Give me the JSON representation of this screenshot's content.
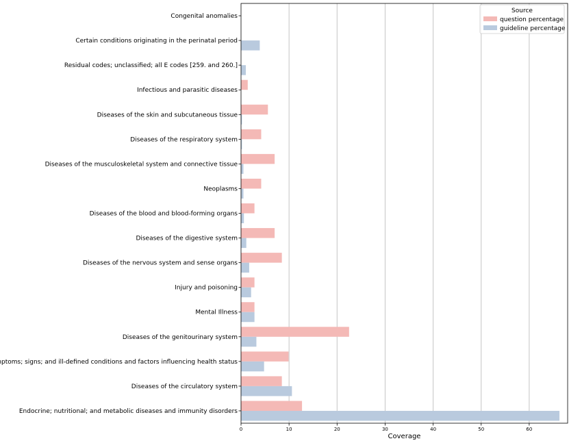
{
  "chart_data": {
    "type": "bar",
    "orientation": "horizontal",
    "title": "",
    "xlabel": "Coverage",
    "ylabel": "",
    "xlim": [
      0,
      68
    ],
    "xticks": [
      0,
      10,
      20,
      30,
      40,
      50,
      60
    ],
    "grid": "x",
    "legend": {
      "title": "Source",
      "position": "top-right"
    },
    "categories": [
      "Congenital anomalies",
      "Certain conditions originating in the perinatal period",
      "Residual codes; unclassified; all E codes [259. and 260.]",
      "Infectious and parasitic diseases",
      "Diseases of the skin and subcutaneous tissue",
      "Diseases of the respiratory system",
      "Diseases of the musculoskeletal system and connective tissue",
      "Neoplasms",
      "Diseases of the blood and blood-forming organs",
      "Diseases of the digestive system",
      "Diseases of the nervous system and sense organs",
      "Injury and poisoning",
      "Mental Illness",
      "Diseases of the genitourinary system",
      "Symptoms; signs; and ill-defined conditions and factors influencing health status",
      "Diseases of the circulatory system",
      "Endocrine; nutritional; and metabolic diseases and immunity disorders"
    ],
    "series": [
      {
        "name": "question percentage",
        "color": "#f4b9b6",
        "values": [
          0,
          0,
          0,
          1.4,
          5.6,
          4.2,
          7.0,
          4.2,
          2.8,
          7.0,
          8.5,
          2.8,
          2.8,
          22.5,
          9.9,
          8.5,
          12.7
        ]
      },
      {
        "name": "guideline percentage",
        "color": "#b9cade",
        "values": [
          0,
          3.9,
          1.0,
          0,
          0.2,
          0.2,
          0.5,
          0.5,
          0.6,
          1.1,
          1.7,
          2.1,
          2.8,
          3.2,
          4.8,
          10.6,
          66.3
        ]
      }
    ]
  }
}
